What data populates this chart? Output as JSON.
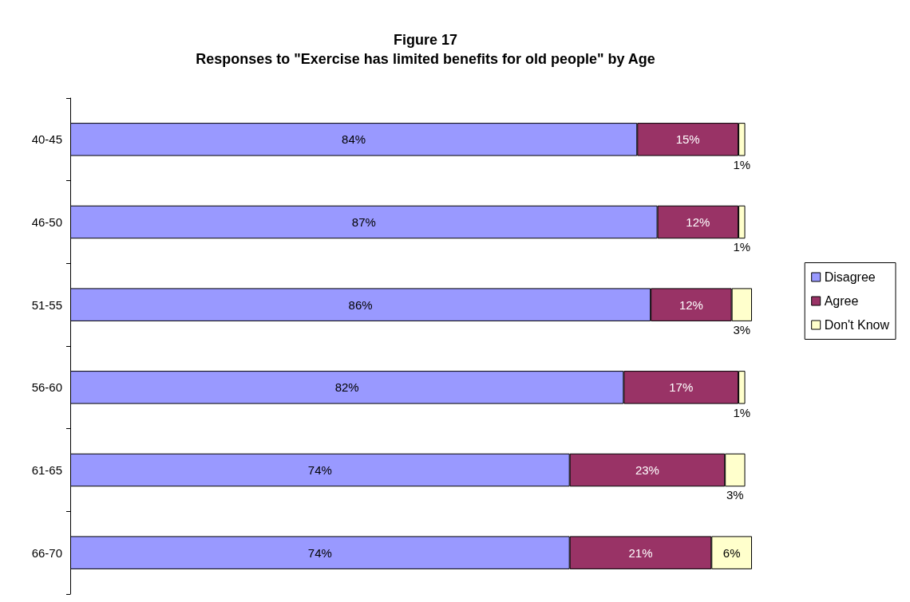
{
  "chart_data": {
    "type": "bar",
    "orientation": "horizontal",
    "stacked": true,
    "title": "Figure 17",
    "subtitle": "Responses to \"Exercise has limited benefits for old people\" by Age",
    "categories": [
      "40-45",
      "46-50",
      "51-55",
      "56-60",
      "61-65",
      "66-70"
    ],
    "series": [
      {
        "name": "Disagree",
        "color": "#9999ff",
        "values": [
          84,
          87,
          86,
          82,
          74,
          74
        ],
        "value_labels": [
          "84%",
          "87%",
          "86%",
          "82%",
          "74%",
          "74%"
        ]
      },
      {
        "name": "Agree",
        "color": "#993366",
        "values": [
          15,
          12,
          12,
          17,
          23,
          21
        ],
        "value_labels": [
          "15%",
          "12%",
          "12%",
          "17%",
          "23%",
          "21%"
        ]
      },
      {
        "name": "Don't Know",
        "color": "#ffffcc",
        "values": [
          1,
          1,
          3,
          1,
          3,
          6
        ],
        "value_labels": [
          "1%",
          "1%",
          "3%",
          "1%",
          "3%",
          "6%"
        ]
      }
    ],
    "legend": "right"
  }
}
